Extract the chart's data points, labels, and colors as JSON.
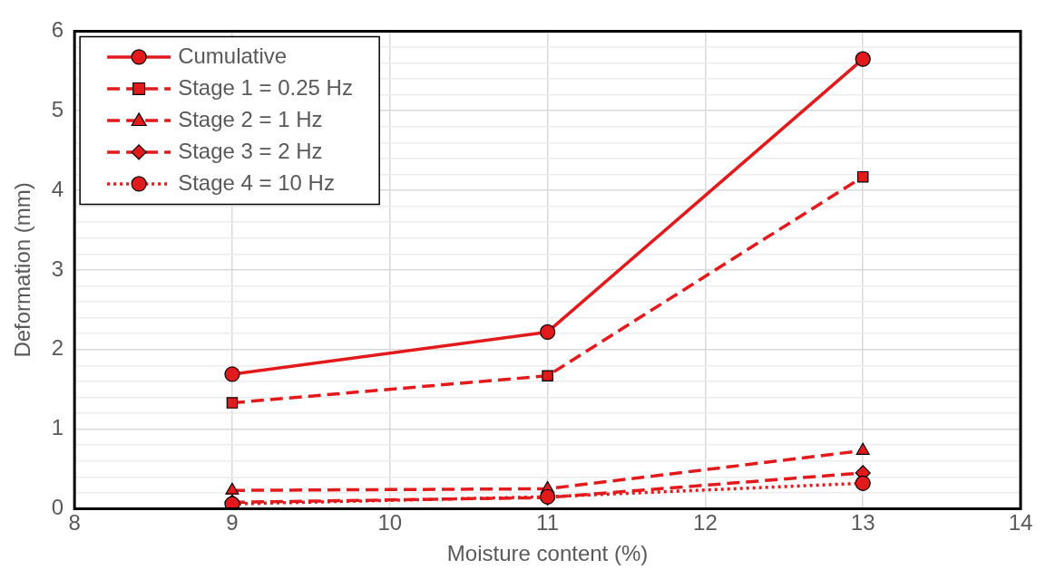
{
  "chart_data": {
    "type": "line",
    "xlabel": "Moisture content (%)",
    "ylabel": "Deformation (mm)",
    "x": [
      9,
      11,
      13
    ],
    "series": [
      {
        "name": "Cumulative",
        "color": "#e31a1c",
        "values": [
          1.69,
          2.22,
          5.65
        ],
        "marker": "circle",
        "line_style": "solid"
      },
      {
        "name": "Stage 1 = 0.25 Hz",
        "color": "#e31a1c",
        "values": [
          1.33,
          1.67,
          4.17
        ],
        "marker": "square",
        "line_style": "dashed"
      },
      {
        "name": "Stage 2 = 1 Hz",
        "color": "#e31a1c",
        "values": [
          0.23,
          0.25,
          0.73
        ],
        "marker": "triangle",
        "line_style": "dashed"
      },
      {
        "name": "Stage 3 = 2 Hz",
        "color": "#e31a1c",
        "values": [
          0.08,
          0.14,
          0.45
        ],
        "marker": "diamond",
        "line_style": "dashed"
      },
      {
        "name": "Stage 4 = 10 Hz",
        "color": "#e31a1c",
        "values": [
          0.06,
          0.15,
          0.32
        ],
        "marker": "circle",
        "line_style": "dotted"
      }
    ],
    "xlim": [
      8,
      14
    ],
    "xticks": [
      8,
      9,
      10,
      11,
      12,
      13,
      14
    ],
    "ylim": [
      0,
      6
    ],
    "yticks": [
      0,
      {
        "value": 0.2,
        "label": null
      },
      {
        "value": 0.4,
        "label": null
      },
      {
        "value": 0.6,
        "label": null
      },
      {
        "value": 0.8,
        "label": null
      },
      1,
      {
        "value": 1.2,
        "label": null
      },
      {
        "value": 1.4,
        "label": null
      },
      {
        "value": 1.6,
        "label": null
      },
      {
        "value": 1.8,
        "label": null
      },
      2,
      {
        "value": 2.2,
        "label": null
      },
      {
        "value": 2.4,
        "label": null
      },
      {
        "value": 2.6,
        "label": null
      },
      {
        "value": 2.8,
        "label": null
      },
      3,
      {
        "value": 3.2,
        "label": null
      },
      {
        "value": 3.4,
        "label": null
      },
      {
        "value": 3.6,
        "label": null
      },
      {
        "value": 3.8,
        "label": null
      },
      4,
      {
        "value": 4.2,
        "label": null
      },
      {
        "value": 4.4,
        "label": null
      },
      {
        "value": 4.6,
        "label": null
      },
      {
        "value": 4.8,
        "label": null
      },
      5,
      {
        "value": 5.2,
        "label": null
      },
      {
        "value": 5.4,
        "label": null
      },
      {
        "value": 5.6,
        "label": null
      },
      {
        "value": 5.8,
        "label": null
      },
      6
    ],
    "grid": true,
    "legend": "top left"
  }
}
